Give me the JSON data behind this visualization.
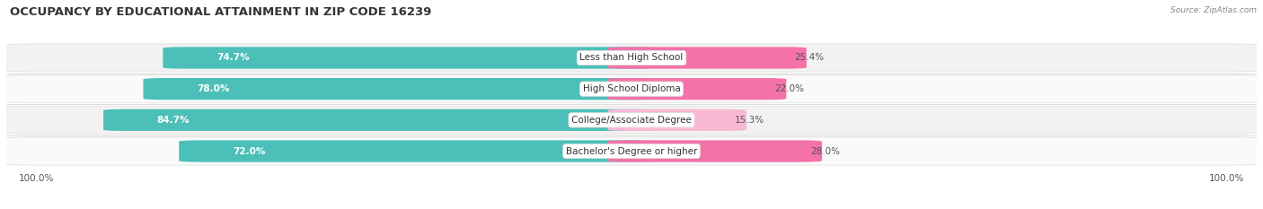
{
  "title": "OCCUPANCY BY EDUCATIONAL ATTAINMENT IN ZIP CODE 16239",
  "source": "Source: ZipAtlas.com",
  "categories": [
    "Less than High School",
    "High School Diploma",
    "College/Associate Degree",
    "Bachelor's Degree or higher"
  ],
  "owner_values": [
    74.7,
    78.0,
    84.7,
    72.0
  ],
  "renter_values": [
    25.4,
    22.0,
    15.3,
    28.0
  ],
  "owner_color": "#4BBFB8",
  "renter_color": "#F472A8",
  "renter_color_light": "#F8B8D4",
  "row_bg_even": "#F2F2F2",
  "row_bg_odd": "#FAFAFA",
  "title_fontsize": 9.5,
  "label_fontsize": 7.5,
  "value_fontsize": 7.5,
  "tick_fontsize": 7.5,
  "legend_fontsize": 8,
  "background_color": "#FFFFFF"
}
